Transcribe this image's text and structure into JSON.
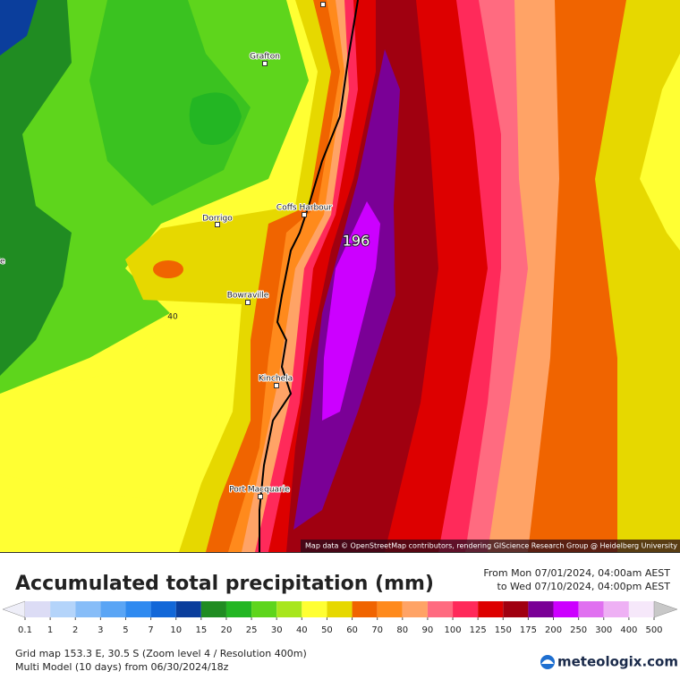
{
  "map": {
    "places": [
      "Grafton",
      "Dorrigo",
      "Coffs Harbour",
      "Bowraville",
      "Kinchela",
      "Port Macquarie",
      "ale"
    ],
    "contour_labels": [
      40,
      196
    ],
    "attribution": "Map data © OpenStreetMap contributors, rendering GIScience Research Group @ Heidelberg University"
  },
  "header": {
    "title": "Accumulated total precipitation (mm)",
    "period_from": "From Mon 07/01/2024, 04:00am AEST",
    "period_to": "to Wed 07/10/2024, 04:00pm AEST"
  },
  "legend": {
    "ticks": [
      0.1,
      1,
      2,
      3,
      5,
      7,
      10,
      15,
      20,
      25,
      30,
      40,
      50,
      60,
      70,
      80,
      90,
      100,
      125,
      150,
      175,
      200,
      250,
      300,
      400,
      500
    ],
    "colors": [
      "#dcdcf5",
      "#b4d4fa",
      "#87bdf8",
      "#5aa5f5",
      "#2f8af0",
      "#1267d8",
      "#0b3e9c",
      "#208c22",
      "#23b623",
      "#5ed51c",
      "#a8e61c",
      "#ffff33",
      "#e6d800",
      "#f06400",
      "#ff8a1c",
      "#ffa366",
      "#ff6b80",
      "#ff2a5a",
      "#dd0000",
      "#a00010",
      "#7a0096",
      "#cc00ff",
      "#e070f0",
      "#eeb0f4",
      "#f6e8fa"
    ],
    "under_color": "#eeeef8",
    "over_color": "#c8c8c8"
  },
  "footer": {
    "grid_info": "Grid map 153.3 E, 30.5 S (Zoom level 4 / Resolution 400m)",
    "model_info": "Multi Model (10 days) from 06/30/2024/18z",
    "logo": "meteologix.com"
  }
}
